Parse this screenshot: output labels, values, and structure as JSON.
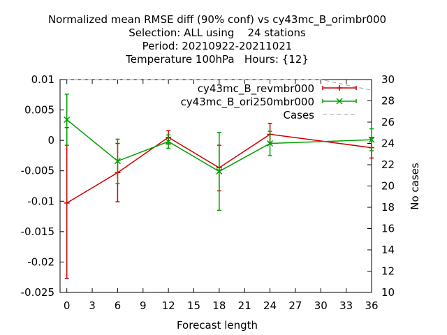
{
  "chart_data": {
    "type": "line",
    "title_lines": [
      "Normalized mean RMSE diff (90% conf) vs cy43mc_B_orimbr000",
      "Selection: ALL using    24 stations",
      "Period: 20210922-20211021",
      "Temperature 100hPa   Hours: {12}"
    ],
    "xlabel": "Forecast length",
    "ylabel": "",
    "y2label": "No cases",
    "xlim": [
      -0.8,
      36
    ],
    "ylim": [
      -0.025,
      0.01
    ],
    "y2lim": [
      10,
      30
    ],
    "xticks": [
      0,
      3,
      6,
      9,
      12,
      15,
      18,
      21,
      24,
      27,
      30,
      33,
      36
    ],
    "yticks": [
      0.01,
      0.005,
      0,
      -0.005,
      -0.01,
      -0.015,
      -0.02,
      -0.025
    ],
    "ytick_labels": [
      "0.01",
      "0.005",
      "0",
      "-0.005",
      "-0.01",
      "-0.015",
      "-0.02",
      "-0.025"
    ],
    "y2ticks": [
      30,
      28,
      26,
      24,
      22,
      20,
      18,
      16,
      14,
      12,
      10
    ],
    "legend_position": "top-right",
    "series": [
      {
        "name": "cy43mc_B_revmbr000",
        "color": "#cc0000",
        "marker": "plus",
        "x": [
          0,
          6,
          12,
          18,
          24,
          36
        ],
        "y": [
          -0.0103,
          -0.0053,
          0.0005,
          -0.0045,
          0.001,
          -0.0012
        ],
        "err_low": [
          -0.0227,
          -0.0101,
          -0.0006,
          -0.0083,
          -0.0003,
          -0.0029
        ],
        "err_high": [
          0.0021,
          -0.0005,
          0.0016,
          -0.0008,
          0.0028,
          0.0005
        ]
      },
      {
        "name": "cy43mc_B_ori250mbr000",
        "color": "#00a000",
        "marker": "cross",
        "x": [
          0,
          6,
          12,
          18,
          24,
          36
        ],
        "y": [
          0.0034,
          -0.0034,
          -0.0002,
          -0.0051,
          -0.0005,
          0.0001
        ],
        "err_low": [
          -0.0008,
          -0.0071,
          -0.0013,
          -0.0115,
          -0.0025,
          -0.0017
        ],
        "err_high": [
          0.0076,
          0.0002,
          0.0009,
          0.0013,
          0.0015,
          0.0019
        ]
      },
      {
        "name": "Cases",
        "color": "#a0a0a0",
        "marker": "none",
        "dashed": true,
        "axis": "y2",
        "x": [
          0,
          6,
          12,
          18,
          24,
          30,
          36
        ],
        "y": [
          30,
          30,
          30,
          30,
          30,
          30,
          29
        ]
      }
    ]
  }
}
